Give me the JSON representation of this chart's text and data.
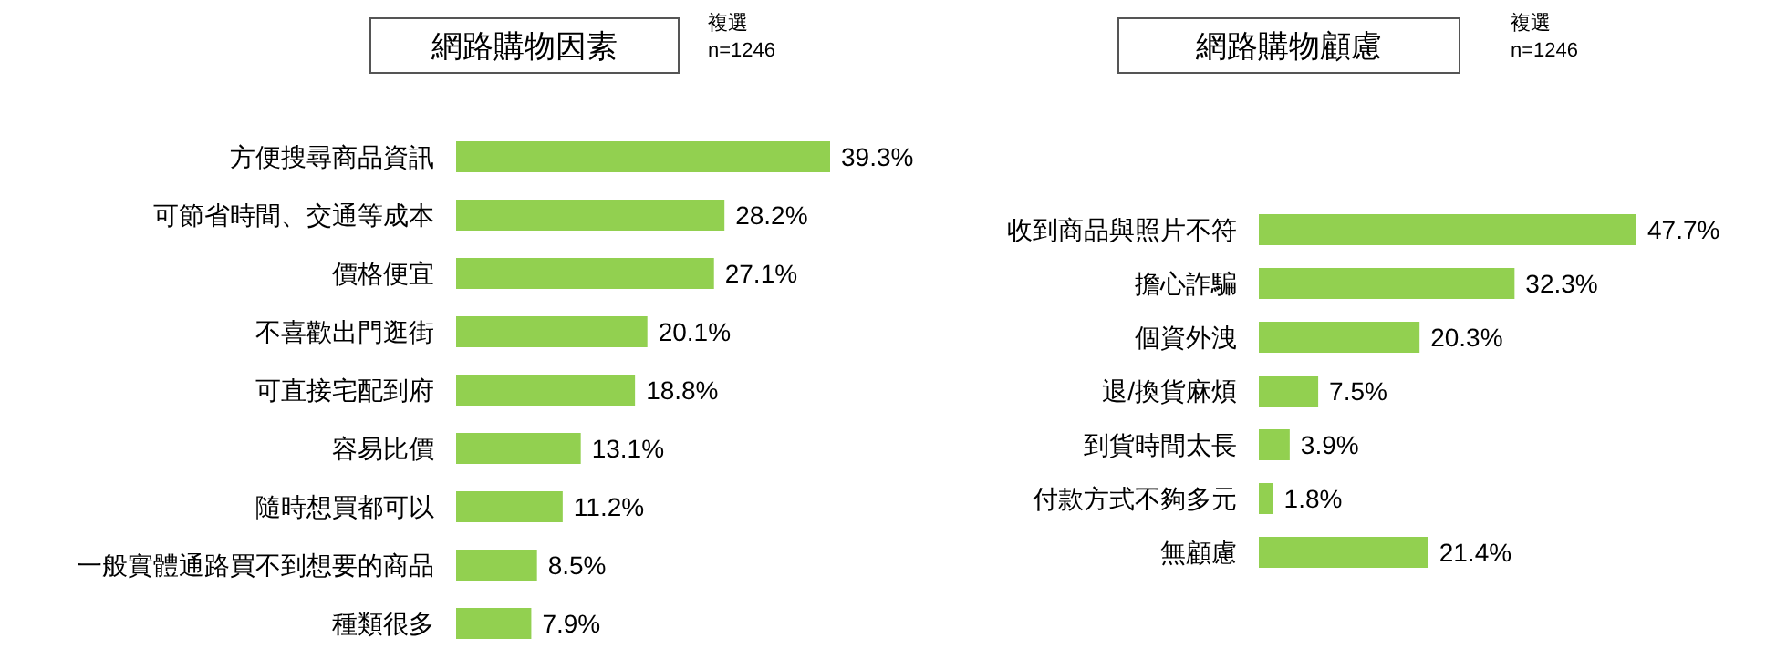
{
  "chart_data": [
    {
      "type": "bar",
      "orientation": "horizontal",
      "title": "網路購物因素",
      "annotations": [
        "複選",
        "n=1246"
      ],
      "categories": [
        "方便搜尋商品資訊",
        "可節省時間、交通等成本",
        "價格便宜",
        "不喜歡出門逛街",
        "可直接宅配到府",
        "容易比價",
        "隨時想買都可以",
        "一般實體通路買不到想要的商品",
        "種類很多"
      ],
      "values": [
        39.3,
        28.2,
        27.1,
        20.1,
        18.8,
        13.1,
        11.2,
        8.5,
        7.9
      ],
      "value_labels": [
        "39.3%",
        "28.2%",
        "27.1%",
        "20.1%",
        "18.8%",
        "13.1%",
        "11.2%",
        "8.5%",
        "7.9%"
      ],
      "color": "#92d050"
    },
    {
      "type": "bar",
      "orientation": "horizontal",
      "title": "網路購物顧慮",
      "annotations": [
        "複選",
        "n=1246"
      ],
      "categories": [
        "收到商品與照片不符",
        "擔心詐騙",
        "個資外洩",
        "退/換貨麻煩",
        "到貨時間太長",
        "付款方式不夠多元",
        "無顧慮"
      ],
      "values": [
        47.7,
        32.3,
        20.3,
        7.5,
        3.9,
        1.8,
        21.4
      ],
      "value_labels": [
        "47.7%",
        "32.3%",
        "20.3%",
        "7.5%",
        "3.9%",
        "1.8%",
        "21.4%"
      ],
      "color": "#92d050"
    }
  ]
}
